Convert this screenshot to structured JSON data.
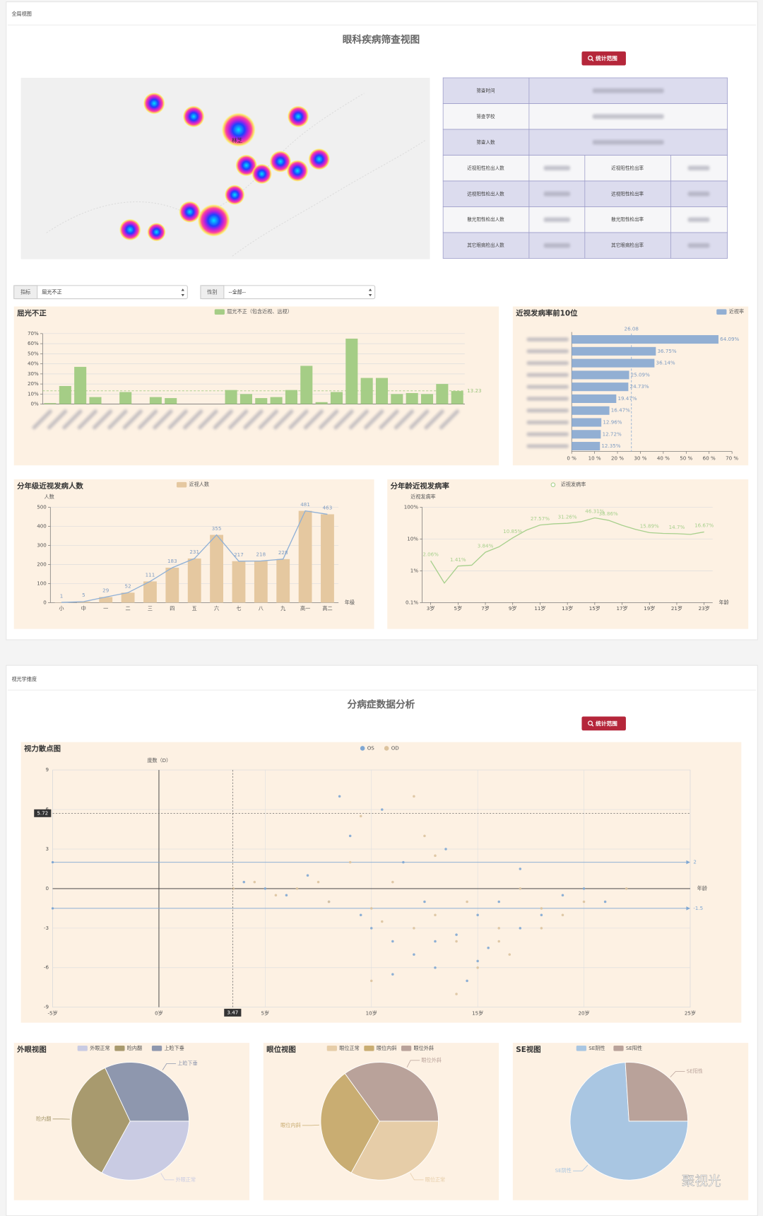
{
  "sections": [
    {
      "label": "全局视图",
      "title": "眼科疾病筛查视图",
      "button": "统计范围"
    },
    {
      "label": "视光学维度",
      "title": "分病症数据分析",
      "button": "统计范围"
    }
  ],
  "map": {
    "label": "林芝"
  },
  "table": {
    "rows": [
      [
        "筛查时间"
      ],
      [
        "筛查学校"
      ],
      [
        "筛查人数"
      ],
      [
        "近视阳性检出人数",
        "近视阳性检出率"
      ],
      [
        "远视阳性检出人数",
        "远视阳性检出率"
      ],
      [
        "散光阳性检出人数",
        "散光阳性检出率"
      ],
      [
        "其它眼病检出人数",
        "其它眼病检出率"
      ]
    ]
  },
  "filters": [
    {
      "label": "指标",
      "value": "屈光不正"
    },
    {
      "label": "性别",
      "value": "--全部--"
    }
  ],
  "chart_data": [
    {
      "type": "bar",
      "title": "屈光不正",
      "categories": [
        null,
        null,
        null,
        null,
        null,
        null,
        null,
        null,
        null,
        null,
        null,
        null,
        null,
        null,
        null,
        null,
        null,
        null,
        null,
        null,
        null,
        null,
        null,
        null,
        null,
        null,
        null,
        null
      ],
      "series": [
        {
          "name": "屈光不正（包含近视、远视）",
          "color": "#a5cd86",
          "values": [
            1,
            18,
            37,
            7,
            0,
            12,
            0,
            7,
            6,
            0,
            0,
            0,
            14,
            10,
            6,
            7,
            14,
            38,
            2,
            12,
            65,
            26,
            26,
            10,
            11,
            10,
            20,
            13
          ]
        }
      ],
      "ylim": [
        0,
        70
      ],
      "yticks": [
        {
          "value": 0,
          "label": "0%"
        },
        {
          "value": 10,
          "label": "10%"
        },
        {
          "value": 20,
          "label": "20%"
        },
        {
          "value": 30,
          "label": "30%"
        },
        {
          "value": 40,
          "label": "40%"
        },
        {
          "value": 50,
          "label": "50%"
        },
        {
          "value": 60,
          "label": "60%"
        },
        {
          "value": 70,
          "label": "70%"
        }
      ],
      "grid": true,
      "mark_line": 13.23
    },
    {
      "type": "hbar",
      "title": "近视发病率前10位",
      "categories": [
        null,
        null,
        null,
        null,
        null,
        null,
        null,
        null,
        null,
        null
      ],
      "series": [
        {
          "name": "近视率",
          "color": "#92afd3",
          "values": [
            64.09,
            36.75,
            36.14,
            25.09,
            24.73,
            19.47,
            16.47,
            12.96,
            12.72,
            12.35
          ],
          "value_labels": [
            "64.09%",
            "36.75%",
            "36.14%",
            "25.09%",
            "24.73%",
            "19.47%",
            "16.47%",
            "12.96%",
            "12.72%",
            "12.35%"
          ]
        }
      ],
      "xlim": [
        0,
        70
      ],
      "xticks": [
        {
          "value": 0,
          "label": "0 %"
        },
        {
          "value": 10,
          "label": "10 %"
        },
        {
          "value": 20,
          "label": "20 %"
        },
        {
          "value": 30,
          "label": "30 %"
        },
        {
          "value": 40,
          "label": "40 %"
        },
        {
          "value": 50,
          "label": "50 %"
        },
        {
          "value": 60,
          "label": "60 %"
        },
        {
          "value": 70,
          "label": "70 %"
        }
      ],
      "mark_line": 26.08
    },
    {
      "type": "bar_line",
      "title": "分年级近视发病人数",
      "y_label": "人数",
      "x_label": "年级",
      "categories": [
        "小",
        "中",
        "一",
        "二",
        "三",
        "四",
        "五",
        "六",
        "七",
        "八",
        "九",
        "高一",
        "高二"
      ],
      "series": [
        {
          "name": "近视人数",
          "color": "#e5c8a0",
          "values": [
            1,
            5,
            29,
            52,
            111,
            183,
            231,
            355,
            217,
            218,
            228,
            481,
            463
          ]
        }
      ],
      "line_color": "#8fb0d6",
      "ylim": [
        0,
        500
      ],
      "yticks": [
        0,
        100,
        200,
        300,
        400,
        500
      ],
      "grid": true
    },
    {
      "type": "line",
      "title": "分年龄近视发病率",
      "y_label": "近视发病率",
      "x_label": "年龄",
      "categories": [
        "3岁",
        null,
        "5岁",
        null,
        "7岁",
        null,
        "9岁",
        null,
        "11岁",
        null,
        "13岁",
        null,
        "15岁",
        null,
        "17岁",
        null,
        "19岁",
        null,
        "21岁",
        null,
        "23岁"
      ],
      "series": [
        {
          "name": "近视发病率",
          "color": "#a8d08d",
          "values": [
            2.06,
            0.41,
            1.41,
            1.5,
            3.84,
            5.7,
            10.85,
            19,
            27.57,
            30,
            31.26,
            35,
            46.31,
            38.86,
            27,
            20,
            15.89,
            15,
            14.7,
            14,
            16.67
          ],
          "value_labels": [
            "2.06%",
            null,
            "1.41%",
            null,
            "3.84%",
            null,
            "10.85%",
            null,
            "27.57%",
            null,
            "31.26%",
            null,
            "46.31%",
            "38.86%",
            null,
            null,
            "15.89%",
            null,
            "14.7%",
            null,
            "16.67%"
          ]
        }
      ],
      "log_y": true,
      "ylim": [
        0.1,
        100
      ],
      "yticks": [
        {
          "value": 0.1,
          "label": "0.1%"
        },
        {
          "value": 1,
          "label": "1%"
        },
        {
          "value": 10,
          "label": "10%"
        },
        {
          "value": 100,
          "label": "100%"
        }
      ],
      "grid": true
    },
    {
      "type": "scatter",
      "title": "视力散点图",
      "x_label": "年龄",
      "y_label": "度数（D）",
      "series": [
        {
          "name": "OS",
          "color": "#7fa7d3",
          "x": [
            4,
            5,
            6,
            7,
            8,
            9,
            9.5,
            10,
            10.5,
            11,
            11.5,
            12,
            12.5,
            13,
            13.5,
            14,
            14.5,
            15,
            15.5,
            16,
            17,
            18,
            19,
            20,
            21,
            8.5,
            11,
            13,
            15,
            17
          ],
          "values": [
            0.5,
            0,
            -0.5,
            1,
            -1,
            4,
            -2,
            -3,
            6,
            -4,
            2,
            -5,
            -1,
            -6,
            3,
            -3.5,
            -7,
            -2,
            -4.5,
            -1,
            -3,
            -2,
            -0.5,
            0,
            -1,
            7,
            -6.5,
            -4,
            -5.5,
            1.5
          ]
        },
        {
          "name": "OD",
          "color": "#dcc39e",
          "x": [
            3.5,
            4.5,
            5.5,
            6.5,
            7.5,
            8,
            9,
            10,
            10.5,
            11,
            12,
            12.5,
            13,
            14,
            14.5,
            15,
            16,
            16.5,
            17,
            18,
            19,
            20,
            22,
            9.5,
            12,
            14,
            16,
            18,
            10,
            13
          ],
          "values": [
            0,
            0.5,
            -0.5,
            0,
            0.5,
            -1,
            2,
            -1.5,
            -2.5,
            0.5,
            -3,
            4,
            -2,
            -4,
            -1,
            -6,
            -3,
            -5,
            0,
            -1.5,
            -2,
            -1,
            0,
            5.5,
            7,
            -8,
            -4,
            -3,
            -7,
            2.5
          ]
        }
      ],
      "xlim": [
        -5,
        25
      ],
      "xticks": [
        {
          "value": -5,
          "label": "-5岁"
        },
        {
          "value": 0,
          "label": "0岁"
        },
        {
          "value": 5,
          "label": "5岁"
        },
        {
          "value": 10,
          "label": "10岁"
        },
        {
          "value": 15,
          "label": "15岁"
        },
        {
          "value": 20,
          "label": "20岁"
        },
        {
          "value": 25,
          "label": "25岁"
        }
      ],
      "ylim": [
        -9,
        9
      ],
      "yticks": [
        -9,
        -6,
        -3,
        0,
        3,
        6,
        9
      ],
      "grid": true,
      "mark_lines": [
        2,
        -1.5
      ],
      "crosshair": {
        "x": 3.47,
        "y": 5.72
      }
    },
    {
      "type": "pie",
      "title": "外眼视图",
      "categories": [
        "外眼正常",
        "睑内翻",
        "上睑下垂"
      ],
      "values": [
        33,
        35,
        32
      ],
      "colors": [
        "#c9cbe3",
        "#a89a6e",
        "#8e97ae"
      ]
    },
    {
      "type": "pie",
      "title": "眼位视图",
      "categories": [
        "眼位正常",
        "眼位内斜",
        "眼位外斜"
      ],
      "values": [
        33,
        32,
        35
      ],
      "colors": [
        "#e6cda8",
        "#c9ad72",
        "#b9a29a"
      ]
    },
    {
      "type": "pie",
      "title": "SE视图",
      "categories": [
        "SE阴性",
        "SE阳性"
      ],
      "values": [
        74,
        26
      ],
      "colors": [
        "#a9c6e2",
        "#b9a29a"
      ]
    }
  ],
  "watermark": "聚视光"
}
